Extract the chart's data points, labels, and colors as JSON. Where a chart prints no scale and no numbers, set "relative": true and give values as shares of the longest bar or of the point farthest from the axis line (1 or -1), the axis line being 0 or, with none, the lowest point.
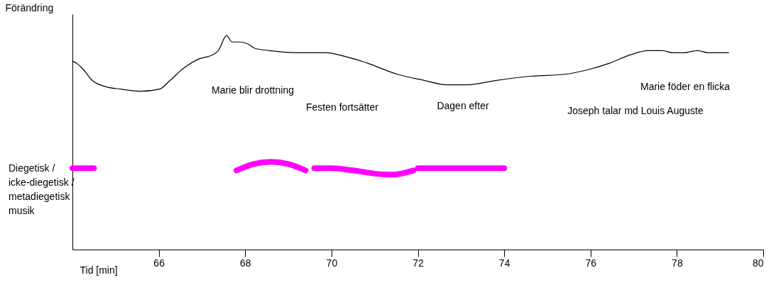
{
  "chart_data": {
    "type": "line",
    "relative": true,
    "xlabel": "Tid [min]",
    "ylabel": "Förändring",
    "xlim": [
      64,
      80
    ],
    "xticks": [
      66,
      68,
      70,
      72,
      74,
      76,
      78,
      80
    ],
    "grid": false,
    "legend": false,
    "marker": "none",
    "line_style": "solid",
    "series": [
      {
        "color": "#000000",
        "x": [
          64.0,
          64.1,
          64.26,
          64.46,
          64.79,
          65.11,
          65.6,
          66.02,
          66.26,
          66.59,
          66.92,
          67.25,
          67.38,
          67.57,
          67.7,
          67.9,
          68.07,
          68.23,
          68.56,
          69.21,
          69.87,
          70.36,
          70.85,
          71.51,
          72.16,
          72.66,
          73.15,
          73.8,
          74.62,
          75.44,
          75.93,
          76.43,
          76.92,
          77.33,
          77.66,
          77.9,
          78.15,
          78.48,
          78.72,
          78.98,
          79.2
        ],
        "values": [
          0.88,
          0.87,
          0.84,
          0.79,
          0.76,
          0.75,
          0.74,
          0.75,
          0.79,
          0.85,
          0.89,
          0.91,
          0.93,
          1.0,
          0.97,
          0.97,
          0.96,
          0.94,
          0.93,
          0.92,
          0.92,
          0.9,
          0.87,
          0.82,
          0.79,
          0.77,
          0.77,
          0.79,
          0.81,
          0.82,
          0.84,
          0.87,
          0.91,
          0.93,
          0.93,
          0.92,
          0.92,
          0.93,
          0.92,
          0.92,
          0.92
        ]
      },
      {
        "name": "Diegetisk / icke-diegetisk / metadiegetisk musik",
        "color": "#ff00ff",
        "x": [
          64.0,
          64.25,
          64.5,
          64.6,
          67.8,
          68.2,
          68.6,
          69.0,
          69.4,
          69.5,
          69.6,
          70.0,
          70.5,
          71.0,
          71.4,
          71.9,
          71.95,
          72.0,
          73.0,
          74.0
        ],
        "values": [
          0.38,
          0.38,
          0.38,
          null,
          0.37,
          0.4,
          0.41,
          0.4,
          0.37,
          null,
          0.38,
          0.38,
          0.37,
          0.355,
          0.35,
          0.37,
          null,
          0.38,
          0.38,
          0.38
        ]
      }
    ],
    "annotations": [
      "Marie blir drottning",
      "Festen fortsätter",
      "Dagen efter",
      "Joseph talar md Louis Auguste",
      "Marie föder en flicka"
    ]
  }
}
